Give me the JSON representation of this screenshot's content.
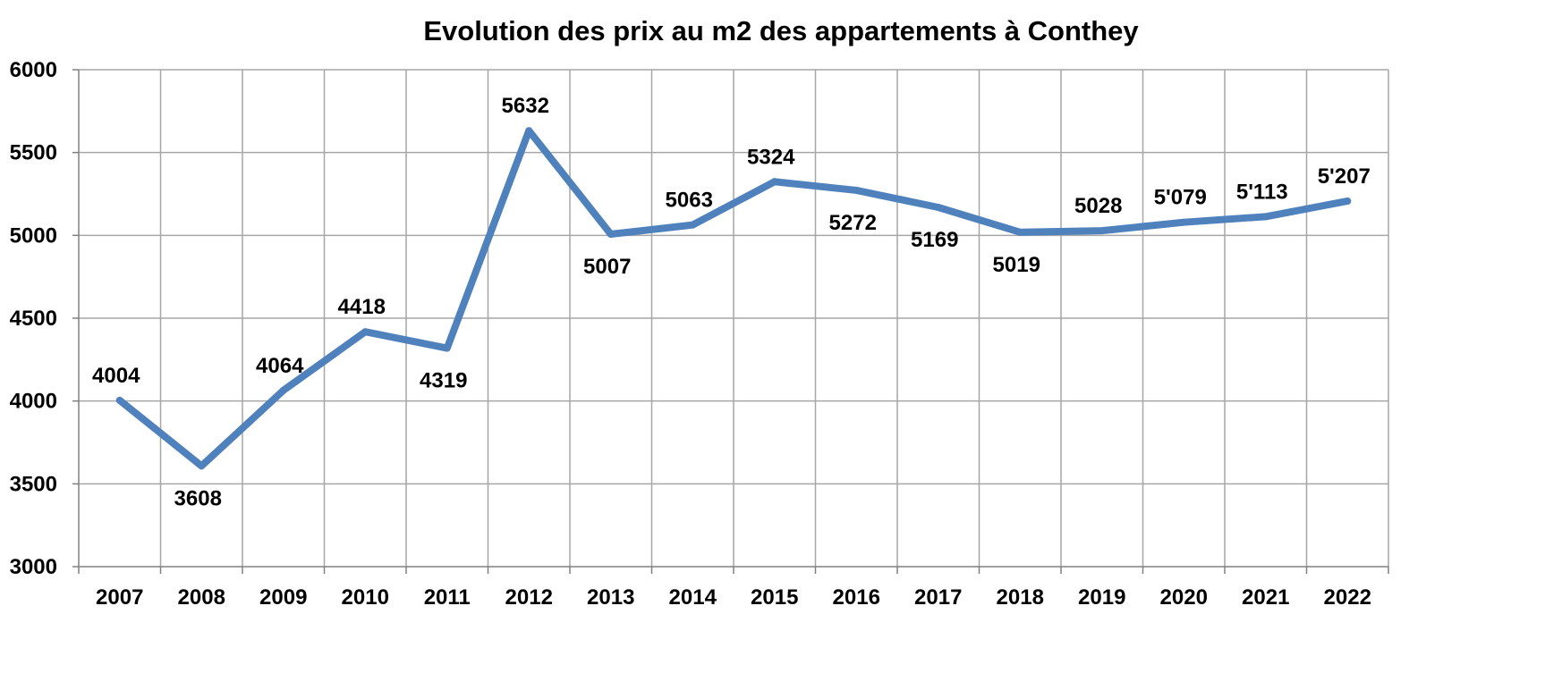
{
  "chart_data": {
    "type": "line",
    "title": "Evolution des prix au m2 des appartements à Conthey",
    "xlabel": "",
    "ylabel": "",
    "ylim": [
      3000,
      6000
    ],
    "yticks": [
      3000,
      3500,
      4000,
      4500,
      5000,
      5500,
      6000
    ],
    "ytick_labels": [
      "3000",
      "3500",
      "4000",
      "4500",
      "5000",
      "5500",
      "6000"
    ],
    "grid": true,
    "legend": "none",
    "line_color": "#4f81bd",
    "categories": [
      "2007",
      "2008",
      "2009",
      "2010",
      "2011",
      "2012",
      "2013",
      "2014",
      "2015",
      "2016",
      "2017",
      "2018",
      "2019",
      "2020",
      "2021",
      "2022"
    ],
    "series": [
      {
        "name": "Prix au m2",
        "values": [
          4004,
          3608,
          4064,
          4418,
          4319,
          5632,
          5007,
          5063,
          5324,
          5272,
          5169,
          5019,
          5028,
          5079,
          5113,
          5207
        ],
        "labels": [
          "4004",
          "3608",
          "4064",
          "4418",
          "4319",
          "5632",
          "5007",
          "5063",
          "5324",
          "5272",
          "5169",
          "5019",
          "5028",
          "5'079",
          "5'113",
          "5'207"
        ],
        "label_positions": [
          "above",
          "below",
          "above",
          "above",
          "below",
          "above",
          "below",
          "above",
          "above",
          "below",
          "below",
          "below",
          "above",
          "above",
          "above",
          "above"
        ]
      }
    ]
  }
}
